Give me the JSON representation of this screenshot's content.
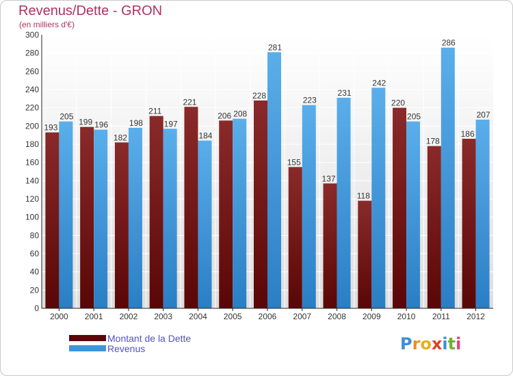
{
  "title": "Revenus/Dette - GRON",
  "subtitle": "(en milliers d'€)",
  "logo_text": "Proxiti",
  "colors": {
    "debt": "#7a1a1a",
    "revenue": "#3c96dc",
    "title": "#b03060",
    "legend_text": "#5050c8"
  },
  "chart_data": {
    "type": "bar",
    "title": "Revenus/Dette - GRON",
    "subtitle": "(en milliers d'€)",
    "categories": [
      "2000",
      "2001",
      "2002",
      "2003",
      "2004",
      "2005",
      "2006",
      "2007",
      "2008",
      "2009",
      "2010",
      "2011",
      "2012"
    ],
    "series": [
      {
        "name": "Montant de la Dette",
        "values": [
          193,
          199,
          182,
          211,
          221,
          206,
          228,
          155,
          137,
          118,
          220,
          178,
          186
        ]
      },
      {
        "name": "Revenus",
        "values": [
          205,
          196,
          198,
          197,
          184,
          208,
          281,
          223,
          231,
          242,
          205,
          286,
          207
        ]
      }
    ],
    "ylim": [
      0,
      300
    ],
    "yticks": [
      0,
      20,
      40,
      60,
      80,
      100,
      120,
      140,
      160,
      180,
      200,
      220,
      240,
      260,
      280,
      300
    ],
    "grid": true,
    "legend_position": "bottom-left"
  }
}
